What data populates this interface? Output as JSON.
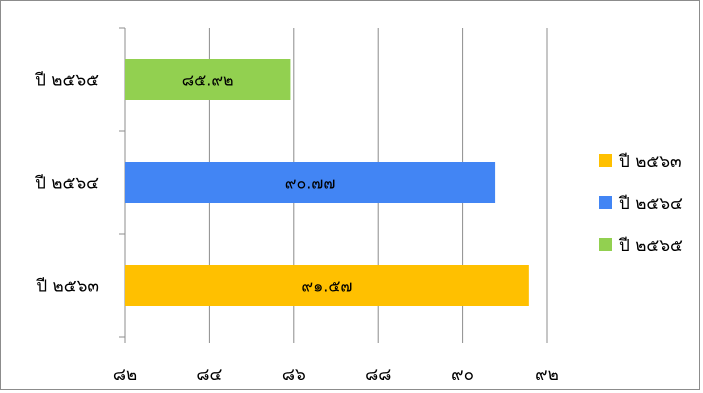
{
  "chart_data": {
    "type": "bar",
    "orientation": "horizontal",
    "categories": [
      "ปี ๒๕๖๓",
      "ปี ๒๕๖๔",
      "ปี ๒๕๖๕"
    ],
    "values": [
      91.57,
      90.77,
      85.92
    ],
    "value_labels": [
      "๙๑.๕๗",
      "๙๐.๗๗",
      "๘๕.๙๒"
    ],
    "bar_colors": [
      "#FFC000",
      "#4285F4",
      "#92D050"
    ],
    "xlim": [
      82,
      92
    ],
    "x_ticks": [
      82,
      84,
      86,
      88,
      90,
      92
    ],
    "x_tick_labels": [
      "๘๒",
      "๘๔",
      "๘๖",
      "๘๘",
      "๙๐",
      "๙๒"
    ],
    "grid": true,
    "legend_position": "right",
    "legend": [
      {
        "label": "ปี ๒๕๖๓",
        "color": "#FFC000"
      },
      {
        "label": "ปี ๒๕๖๔",
        "color": "#4285F4"
      },
      {
        "label": "ปี ๒๕๖๕",
        "color": "#92D050"
      }
    ]
  }
}
